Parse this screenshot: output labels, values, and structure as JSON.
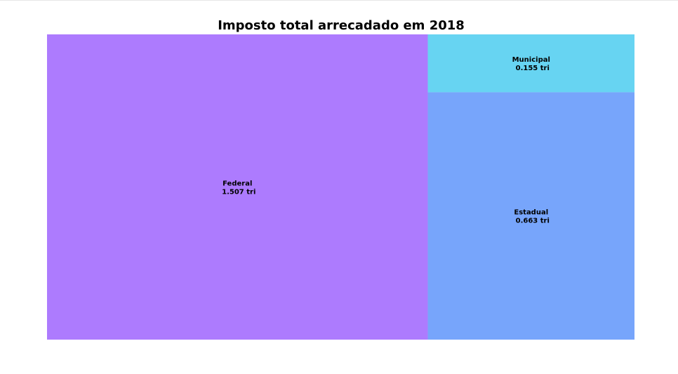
{
  "chart_data": {
    "type": "treemap",
    "title": "Imposto total arrecadado em 2018",
    "unit": "tri",
    "items": [
      {
        "label": "Federal",
        "value": 1.507,
        "value_text": "1.507 tri",
        "color": "#ad7bfe"
      },
      {
        "label": "Estadual",
        "value": 0.663,
        "value_text": "0.663 tri",
        "color": "#77a5fb"
      },
      {
        "label": "Municipal",
        "value": 0.155,
        "value_text": "0.155 tri",
        "color": "#67d4f2"
      }
    ]
  }
}
